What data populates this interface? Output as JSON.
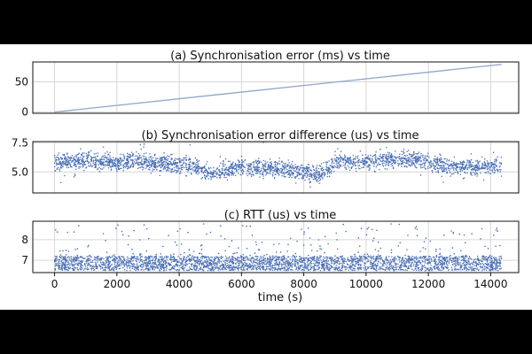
{
  "chart_data": [
    {
      "type": "line",
      "title": "(a) Synchronisation error (ms) vs time",
      "xlim": [
        -700,
        14900
      ],
      "ylim": [
        -2,
        83
      ],
      "yticks": [
        0,
        50
      ],
      "ytick_labels": [
        "0",
        "50"
      ],
      "xticks": [
        0,
        2000,
        4000,
        6000,
        8000,
        10000,
        12000,
        14000
      ],
      "x": [
        0,
        14350
      ],
      "y": [
        0,
        79
      ],
      "color": "#8fa5cc",
      "grid": true
    },
    {
      "type": "scatter",
      "title": "(b) Synchronisation error difference (us) vs time",
      "xlim": [
        -700,
        14900
      ],
      "ylim": [
        3.2,
        7.6
      ],
      "yticks": [
        5.0,
        7.5
      ],
      "ytick_labels": [
        "5.0",
        "7.5"
      ],
      "xticks": [
        0,
        2000,
        4000,
        6000,
        8000,
        10000,
        12000,
        14000
      ],
      "x_range": [
        0,
        14350
      ],
      "trend": [
        {
          "x": 0,
          "y": 5.8
        },
        {
          "x": 1000,
          "y": 6.0
        },
        {
          "x": 2000,
          "y": 5.7
        },
        {
          "x": 2500,
          "y": 6.0
        },
        {
          "x": 3500,
          "y": 5.7
        },
        {
          "x": 4500,
          "y": 5.5
        },
        {
          "x": 5000,
          "y": 4.9
        },
        {
          "x": 6000,
          "y": 5.4
        },
        {
          "x": 7000,
          "y": 5.3
        },
        {
          "x": 8000,
          "y": 5.0
        },
        {
          "x": 8500,
          "y": 4.8
        },
        {
          "x": 9000,
          "y": 5.8
        },
        {
          "x": 10000,
          "y": 5.8
        },
        {
          "x": 10500,
          "y": 6.0
        },
        {
          "x": 11500,
          "y": 6.1
        },
        {
          "x": 12500,
          "y": 5.5
        },
        {
          "x": 13500,
          "y": 5.4
        },
        {
          "x": 14350,
          "y": 5.5
        }
      ],
      "spread": 0.35,
      "point_count": 2800,
      "color": "#4a6fb5",
      "grid": true
    },
    {
      "type": "scatter",
      "title": "(c) RTT (us) vs time",
      "xlim": [
        -700,
        14900
      ],
      "ylim": [
        6.4,
        8.9
      ],
      "yticks": [
        7,
        8
      ],
      "ytick_labels": [
        "7",
        "8"
      ],
      "xticks": [
        0,
        2000,
        4000,
        6000,
        8000,
        10000,
        12000,
        14000
      ],
      "xtick_labels": [
        "0",
        "2000",
        "4000",
        "6000",
        "8000",
        "10000",
        "12000",
        "14000"
      ],
      "xlabel": "time (s)",
      "x_range": [
        0,
        14350
      ],
      "band": [
        6.5,
        7.2
      ],
      "point_count": 3000,
      "outlier_count": 220,
      "outlier_range": [
        7.2,
        8.8
      ],
      "color": "#4a6fb5",
      "grid": true
    }
  ]
}
